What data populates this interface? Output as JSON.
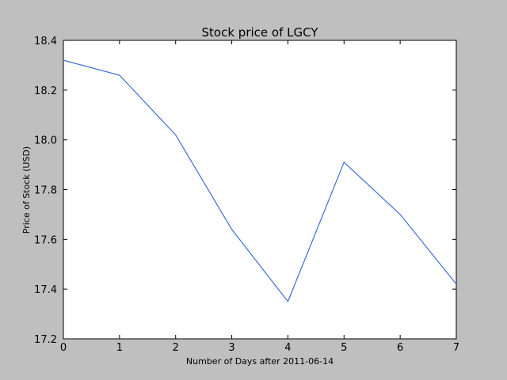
{
  "chart_data": {
    "type": "line",
    "title": "Stock price of LGCY",
    "xlabel": "Number of Days after 2011-06-14",
    "ylabel": "Price of Stock (USD)",
    "xlim": [
      0,
      7
    ],
    "ylim": [
      17.2,
      18.4
    ],
    "xticks": [
      "0",
      "1",
      "2",
      "3",
      "4",
      "5",
      "6",
      "7"
    ],
    "yticks": [
      "17.2",
      "17.4",
      "17.6",
      "17.8",
      "18.0",
      "18.2",
      "18.4"
    ],
    "grid": false,
    "series": [
      {
        "x": [
          0,
          1,
          2,
          3,
          4,
          5,
          6,
          7
        ],
        "values": [
          18.32,
          18.26,
          18.02,
          17.64,
          17.35,
          17.91,
          17.7,
          17.42
        ],
        "color": "#3d6fd6"
      }
    ]
  }
}
